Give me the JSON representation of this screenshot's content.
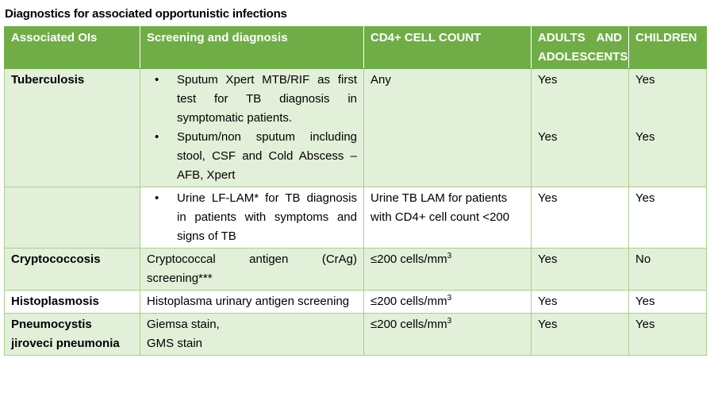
{
  "title": "Diagnostics for associated opportunistic infections",
  "headers": {
    "oi": "Associated OIs",
    "screening": "Screening and diagnosis",
    "cd4": "CD4+ CELL COUNT",
    "adults": "ADULTS AND ADOLESCENTS",
    "children": "CHILDREN"
  },
  "rows": {
    "tb": {
      "name": "Tuberculosis",
      "bullet1": "Sputum Xpert MTB/RIF as first test for TB diagnosis in symptomatic patients.",
      "bullet2": "Sputum/non sputum including stool, CSF and Cold Abscess – AFB, Xpert",
      "cd4": "Any",
      "adults1": "Yes",
      "children1": "Yes",
      "adults2": "Yes",
      "children2": "Yes"
    },
    "tb_lam": {
      "bullet": "Urine LF-LAM* for TB diagnosis in patients with symptoms and signs of TB",
      "cd4": "Urine TB LAM for patients with CD4+ cell count <200",
      "adults": "Yes",
      "children": "Yes"
    },
    "crypto": {
      "name": "Cryptococcosis",
      "screening": "Cryptococcal antigen (CrAg) screening***",
      "cd4": "≤200 cells/mm",
      "cd4_sup": "3",
      "adults": "Yes",
      "children": "No"
    },
    "histo": {
      "name": "Histoplasmosis",
      "screening": "Histoplasma urinary antigen screening",
      "cd4": "≤200 cells/mm",
      "cd4_sup": "3",
      "adults": "Yes",
      "children": "Yes"
    },
    "pcp": {
      "name": "Pneumocystis jiroveci pneumonia",
      "screening1": "Giemsa stain,",
      "screening2": "GMS stain",
      "cd4": "≤200 cells/mm",
      "cd4_sup": "3",
      "adults": "Yes",
      "children": "Yes"
    }
  },
  "bullet_glyph": "•"
}
